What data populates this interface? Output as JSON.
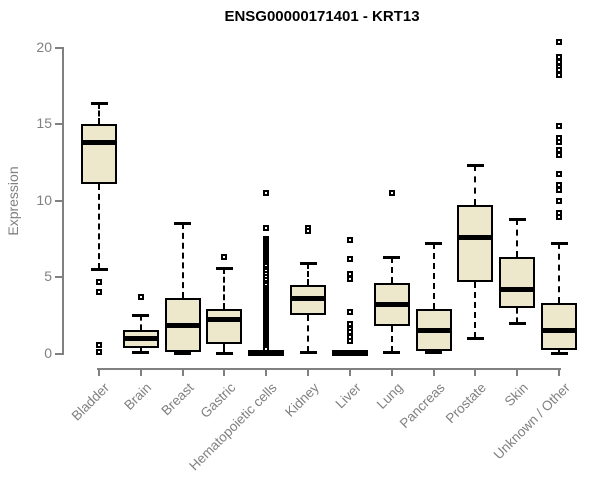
{
  "header": {
    "title": "ENSG00000171401 - KRT13"
  },
  "chart_data": {
    "type": "boxplot",
    "title": "ENSG00000171401 - KRT13",
    "xlabel": "",
    "ylabel": "Expression",
    "ylim": [
      0,
      20.5
    ],
    "yticks": [
      0,
      5,
      10,
      15,
      20
    ],
    "grid": false,
    "legend": "none",
    "categories": [
      "Bladder",
      "Brain",
      "Breast",
      "Gastric",
      "Hematopoietic cells",
      "Kidney",
      "Liver",
      "Lung",
      "Pancreas",
      "Prostate",
      "Skin",
      "Unknown / Other"
    ],
    "series": [
      {
        "name": "Bladder",
        "whisker_low": 5.5,
        "q1": 11.1,
        "median": 13.8,
        "q3": 15.0,
        "whisker_high": 16.4,
        "outliers": [
          4.7,
          4.0,
          0.55,
          0.1
        ]
      },
      {
        "name": "Brain",
        "whisker_low": 0.1,
        "q1": 0.35,
        "median": 1.0,
        "q3": 1.55,
        "whisker_high": 2.5,
        "outliers": [
          3.7
        ]
      },
      {
        "name": "Breast",
        "whisker_low": 0.05,
        "q1": 0.1,
        "median": 1.85,
        "q3": 3.6,
        "whisker_high": 8.5,
        "outliers": []
      },
      {
        "name": "Gastric",
        "whisker_low": 0.05,
        "q1": 0.6,
        "median": 2.2,
        "q3": 2.9,
        "whisker_high": 5.6,
        "outliers": [
          6.3
        ]
      },
      {
        "name": "Hematopoietic cells",
        "whisker_low": 0.0,
        "q1": 0.0,
        "median": 0.05,
        "q3": 0.1,
        "whisker_high": 0.15,
        "outliers": [
          10.5,
          8.2,
          7.5,
          7.4,
          7.3,
          7.2,
          7.1,
          7.0,
          6.9,
          6.8,
          6.7,
          6.6,
          6.5,
          6.4,
          6.3,
          6.2,
          6.1,
          6.0,
          5.9,
          5.8,
          5.7,
          5.55,
          5.4,
          5.2,
          5.0,
          4.8,
          4.6,
          4.45,
          4.3,
          4.15,
          4.0,
          3.9,
          3.8,
          3.7,
          3.6,
          3.5,
          3.4,
          3.3,
          3.2,
          3.1,
          3.0,
          2.9,
          2.8,
          2.7,
          2.6,
          2.5,
          2.4,
          2.3,
          2.2,
          2.1,
          2.0,
          1.9,
          1.8,
          1.7,
          1.6,
          1.5,
          1.4,
          1.3,
          1.2,
          1.1,
          1.0,
          0.9,
          0.8,
          0.7,
          0.6,
          0.5,
          0.4,
          0.3
        ]
      },
      {
        "name": "Kidney",
        "whisker_low": 0.1,
        "q1": 2.5,
        "median": 3.6,
        "q3": 4.5,
        "whisker_high": 5.9,
        "outliers": [
          8.2,
          8.0
        ]
      },
      {
        "name": "Liver",
        "whisker_low": 0.0,
        "q1": 0.0,
        "median": 0.05,
        "q3": 0.1,
        "whisker_high": 0.12,
        "outliers": [
          7.4,
          6.2,
          5.2,
          4.9,
          2.7,
          1.9,
          1.6,
          1.4,
          1.1,
          0.8
        ]
      },
      {
        "name": "Lung",
        "whisker_low": 0.1,
        "q1": 1.8,
        "median": 3.2,
        "q3": 4.6,
        "whisker_high": 6.3,
        "outliers": [
          10.5
        ]
      },
      {
        "name": "Pancreas",
        "whisker_low": 0.1,
        "q1": 0.15,
        "median": 1.5,
        "q3": 2.9,
        "whisker_high": 7.2,
        "outliers": []
      },
      {
        "name": "Prostate",
        "whisker_low": 1.0,
        "q1": 4.7,
        "median": 7.6,
        "q3": 9.7,
        "whisker_high": 12.3,
        "outliers": []
      },
      {
        "name": "Skin",
        "whisker_low": 2.0,
        "q1": 3.0,
        "median": 4.2,
        "q3": 6.3,
        "whisker_high": 8.8,
        "outliers": []
      },
      {
        "name": "Unknown / Other",
        "whisker_low": 0.05,
        "q1": 0.2,
        "median": 1.5,
        "q3": 3.3,
        "whisker_high": 7.2,
        "outliers": [
          20.35,
          19.4,
          19.05,
          18.75,
          18.5,
          18.2,
          14.9,
          14.1,
          13.8,
          13.3,
          13.0,
          11.7,
          11.0,
          10.7,
          10.0,
          9.2,
          8.9
        ]
      }
    ],
    "colors": {
      "box_fill": "#EDE7CB",
      "box_border": "#000000",
      "median": "#000000",
      "axis": "#808080",
      "tick_label": "#808080",
      "title": "#000000",
      "background": "#ffffff"
    }
  }
}
